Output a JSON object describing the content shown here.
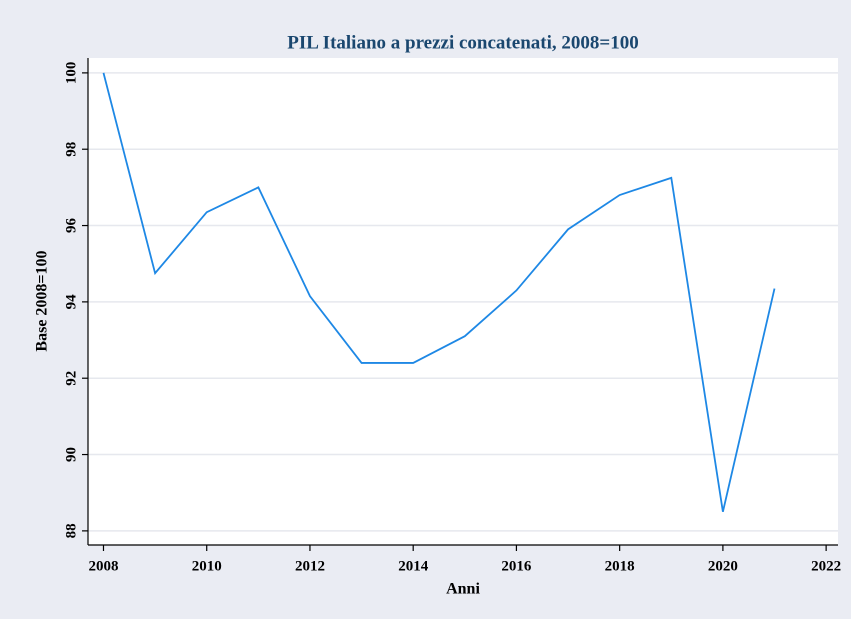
{
  "chart_data": {
    "type": "line",
    "title": "PIL Italiano a prezzi concatenati, 2008=100",
    "x_label": "Anni",
    "y_label": "Base 2008=100",
    "x": [
      2008,
      2009,
      2010,
      2011,
      2012,
      2013,
      2014,
      2015,
      2016,
      2017,
      2018,
      2019,
      2020,
      2021
    ],
    "series": [
      {
        "color": "#1e88e5",
        "values": [
          100,
          94.75,
          96.35,
          97.0,
          94.15,
          92.4,
          92.4,
          93.1,
          94.3,
          95.9,
          96.8,
          97.25,
          88.5,
          94.35
        ]
      }
    ],
    "xlim": [
      2007.7,
      2022.23
    ],
    "ylim": [
      87.63,
      100.39
    ],
    "xticks": [
      2008,
      2010,
      2012,
      2014,
      2016,
      2018,
      2020,
      2022
    ],
    "yticks": [
      88,
      90,
      92,
      94,
      96,
      98,
      100
    ],
    "grid": true
  }
}
